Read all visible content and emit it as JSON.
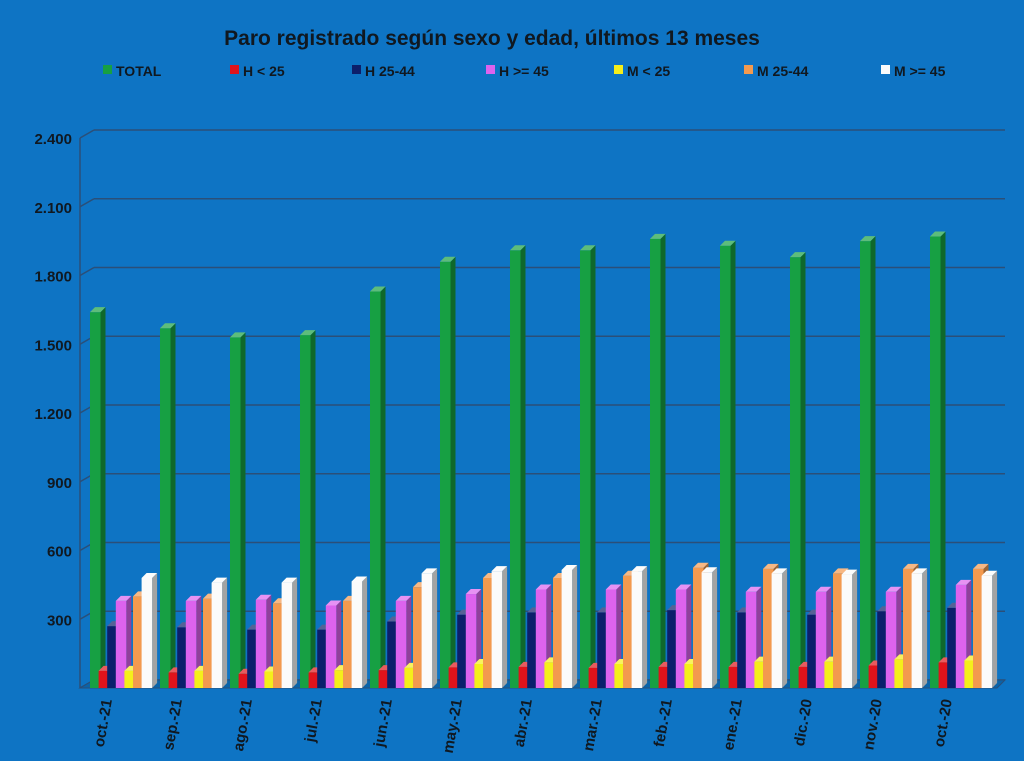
{
  "chart_data": {
    "type": "bar",
    "title": "Paro registrado según sexo y edad, últimos 13 meses",
    "categories": [
      "oct.-21",
      "sep.-21",
      "ago.-21",
      "jul.-21",
      "jun.-21",
      "may.-21",
      "abr.-21",
      "mar.-21",
      "feb.-21",
      "ene.-21",
      "dic.-20",
      "nov.-20",
      "oct.-20"
    ],
    "y_ticks": [
      "2.400",
      "2.100",
      "1.800",
      "1.500",
      "1.200",
      "900",
      "600",
      "300"
    ],
    "y_tick_values": [
      2400,
      2100,
      1800,
      1500,
      1200,
      900,
      600,
      300
    ],
    "ylim": [
      0,
      2400
    ],
    "grid": true,
    "legend_position": "top",
    "series": [
      {
        "name": "TOTAL",
        "color": "#17a043",
        "values": [
          1640,
          1570,
          1530,
          1540,
          1730,
          1860,
          1910,
          1910,
          1960,
          1930,
          1880,
          1950,
          1970
        ]
      },
      {
        "name": "H < 25",
        "color": "#e0131b",
        "values": [
          75,
          68,
          62,
          68,
          78,
          90,
          92,
          88,
          92,
          92,
          92,
          98,
          112
        ]
      },
      {
        "name": "H 25-44",
        "color": "#0c1f6b",
        "values": [
          270,
          265,
          255,
          255,
          290,
          320,
          330,
          330,
          340,
          330,
          320,
          335,
          350
        ]
      },
      {
        "name": "H >= 45",
        "color": "#dd63ee",
        "values": [
          380,
          380,
          385,
          360,
          380,
          410,
          430,
          430,
          430,
          420,
          420,
          420,
          450
        ]
      },
      {
        "name": "M < 25",
        "color": "#f5ee1b",
        "values": [
          75,
          75,
          72,
          78,
          88,
          105,
          112,
          105,
          105,
          115,
          115,
          125,
          120
        ]
      },
      {
        "name": "M 25-44",
        "color": "#f39a4f",
        "values": [
          400,
          390,
          370,
          380,
          440,
          480,
          480,
          490,
          525,
          520,
          500,
          520,
          520
        ]
      },
      {
        "name": "M >= 45",
        "color": "#fbfbfb",
        "values": [
          480,
          460,
          460,
          465,
          500,
          510,
          515,
          510,
          505,
          500,
          495,
          500,
          490
        ]
      }
    ]
  }
}
